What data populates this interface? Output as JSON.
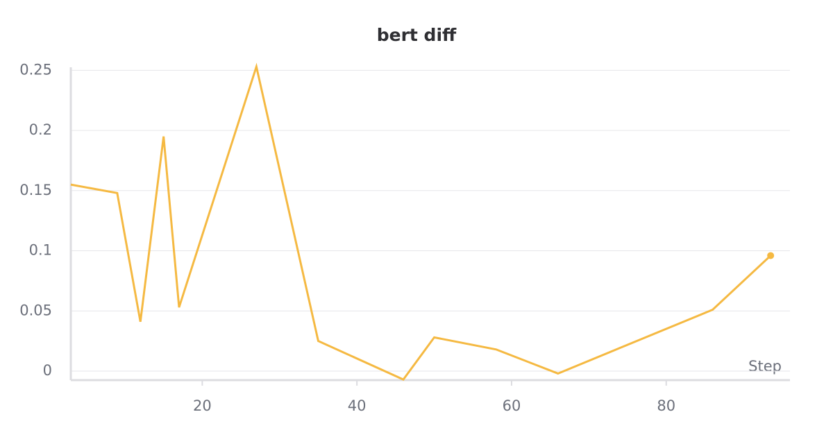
{
  "chart_data": {
    "type": "line",
    "title": "bert diff",
    "x_label": "Step",
    "x": [
      3,
      9,
      12,
      15,
      17,
      27,
      35,
      46,
      50,
      58,
      66,
      86,
      93.5
    ],
    "series": [
      {
        "color": "#f5b942",
        "values": [
          0.155,
          0.148,
          0.041,
          0.195,
          0.053,
          0.253,
          0.025,
          -0.007,
          0.028,
          0.018,
          -0.002,
          0.051,
          0.096
        ]
      }
    ],
    "xlim": [
      3,
      96
    ],
    "ylim": [
      -0.0075,
      0.2525
    ],
    "xticks": [
      20,
      40,
      60,
      80
    ],
    "yticks": [
      0,
      0.05,
      0.1,
      0.15,
      0.2,
      0.25
    ],
    "grid": true
  }
}
